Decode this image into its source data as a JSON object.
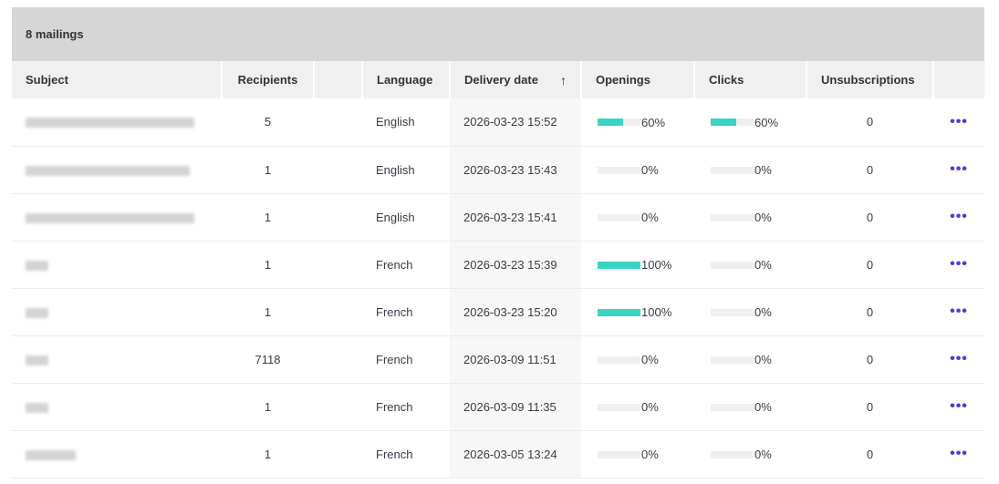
{
  "count_label": "8 mailings",
  "columns": {
    "subject": "Subject",
    "recipients": "Recipients",
    "blank": "",
    "language": "Language",
    "delivery": "Delivery date",
    "openings": "Openings",
    "clicks": "Clicks",
    "unsubs": "Unsubscriptions",
    "sort_icon": "arrow-up-icon"
  },
  "colors": {
    "bar_fill": "#3bd3c1",
    "actions": "#4b3ad8"
  },
  "rows": [
    {
      "recipients": "5",
      "language": "English",
      "date": "2026-03-23 15:52",
      "openings": 60,
      "openings_label": "60%",
      "clicks": 60,
      "clicks_label": "60%",
      "unsubs": "0",
      "actions": "•••"
    },
    {
      "recipients": "1",
      "language": "English",
      "date": "2026-03-23 15:43",
      "openings": 0,
      "openings_label": "0%",
      "clicks": 0,
      "clicks_label": "0%",
      "unsubs": "0",
      "actions": "•••"
    },
    {
      "recipients": "1",
      "language": "English",
      "date": "2026-03-23 15:41",
      "openings": 0,
      "openings_label": "0%",
      "clicks": 0,
      "clicks_label": "0%",
      "unsubs": "0",
      "actions": "•••"
    },
    {
      "recipients": "1",
      "language": "French",
      "date": "2026-03-23 15:39",
      "openings": 100,
      "openings_label": "100%",
      "clicks": 0,
      "clicks_label": "0%",
      "unsubs": "0",
      "actions": "•••"
    },
    {
      "recipients": "1",
      "language": "French",
      "date": "2026-03-23 15:20",
      "openings": 100,
      "openings_label": "100%",
      "clicks": 0,
      "clicks_label": "0%",
      "unsubs": "0",
      "actions": "•••"
    },
    {
      "recipients": "7118",
      "language": "French",
      "date": "2026-03-09 11:51",
      "openings": 0,
      "openings_label": "0%",
      "clicks": 0,
      "clicks_label": "0%",
      "unsubs": "0",
      "actions": "•••"
    },
    {
      "recipients": "1",
      "language": "French",
      "date": "2026-03-09 11:35",
      "openings": 0,
      "openings_label": "0%",
      "clicks": 0,
      "clicks_label": "0%",
      "unsubs": "0",
      "actions": "•••"
    },
    {
      "recipients": "1",
      "language": "French",
      "date": "2026-03-05 13:24",
      "openings": 0,
      "openings_label": "0%",
      "clicks": 0,
      "clicks_label": "0%",
      "unsubs": "0",
      "actions": "•••"
    }
  ]
}
